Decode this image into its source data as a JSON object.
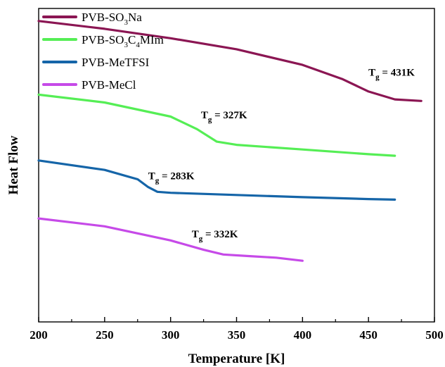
{
  "chart_data": {
    "type": "line",
    "title": "",
    "xlabel": "Temperature [K]",
    "ylabel": "Heat Flow",
    "xlim": [
      200,
      500
    ],
    "xticks": [
      200,
      250,
      300,
      350,
      400,
      450,
      500
    ],
    "ylim": [
      0,
      10
    ],
    "y_ticks_shown": false,
    "grid": false,
    "legend_position": "top-left",
    "series": [
      {
        "name": "PVB-SO3Na",
        "legend_main": "PVB-SO",
        "legend_parts": [
          [
            "PVB-SO",
            ""
          ],
          [
            "3",
            "sub"
          ],
          [
            "Na",
            ""
          ]
        ],
        "color": "#8b1653",
        "x": [
          200,
          250,
          300,
          350,
          400,
          430,
          450,
          470,
          490
        ],
        "y": [
          9.6,
          9.35,
          9.05,
          8.7,
          8.2,
          7.75,
          7.35,
          7.1,
          7.05
        ]
      },
      {
        "name": "PVB-SO3C4MIm",
        "legend_main": "PVB-SO",
        "legend_parts": [
          [
            "PVB-SO",
            ""
          ],
          [
            "3",
            "sub"
          ],
          [
            "C",
            ""
          ],
          [
            "4",
            "sub"
          ],
          [
            "MIm",
            ""
          ]
        ],
        "color": "#55ee55",
        "x": [
          200,
          250,
          300,
          320,
          335,
          350,
          400,
          450,
          470
        ],
        "y": [
          7.25,
          7.0,
          6.55,
          6.15,
          5.75,
          5.65,
          5.5,
          5.35,
          5.3
        ]
      },
      {
        "name": "PVB-MeTFSI",
        "legend_main": "PVB-MeTFSI",
        "legend_parts": [
          [
            "PVB-MeTFSI",
            ""
          ]
        ],
        "color": "#1565a8",
        "x": [
          200,
          250,
          275,
          283,
          290,
          300,
          350,
          400,
          450,
          470
        ],
        "y": [
          5.15,
          4.85,
          4.55,
          4.3,
          4.15,
          4.12,
          4.05,
          3.98,
          3.92,
          3.9
        ]
      },
      {
        "name": "PVB-MeCl",
        "legend_main": "PVB-MeCl",
        "legend_parts": [
          [
            "PVB-MeCl",
            ""
          ]
        ],
        "color": "#c64ae8",
        "x": [
          200,
          250,
          300,
          325,
          340,
          360,
          380,
          400
        ],
        "y": [
          3.3,
          3.05,
          2.6,
          2.3,
          2.15,
          2.1,
          2.05,
          1.95
        ]
      }
    ],
    "annotations": [
      {
        "main": "T",
        "sub": "g",
        "rest": " = 431K",
        "x": 450,
        "y": 7.85
      },
      {
        "main": "T",
        "sub": "g",
        "rest": " = 327K",
        "x": 323,
        "y": 6.5
      },
      {
        "main": "T",
        "sub": "g",
        "rest": " = 283K",
        "x": 283,
        "y": 4.55
      },
      {
        "main": "T",
        "sub": "g",
        "rest": " = 332K",
        "x": 316,
        "y": 2.7
      }
    ]
  }
}
